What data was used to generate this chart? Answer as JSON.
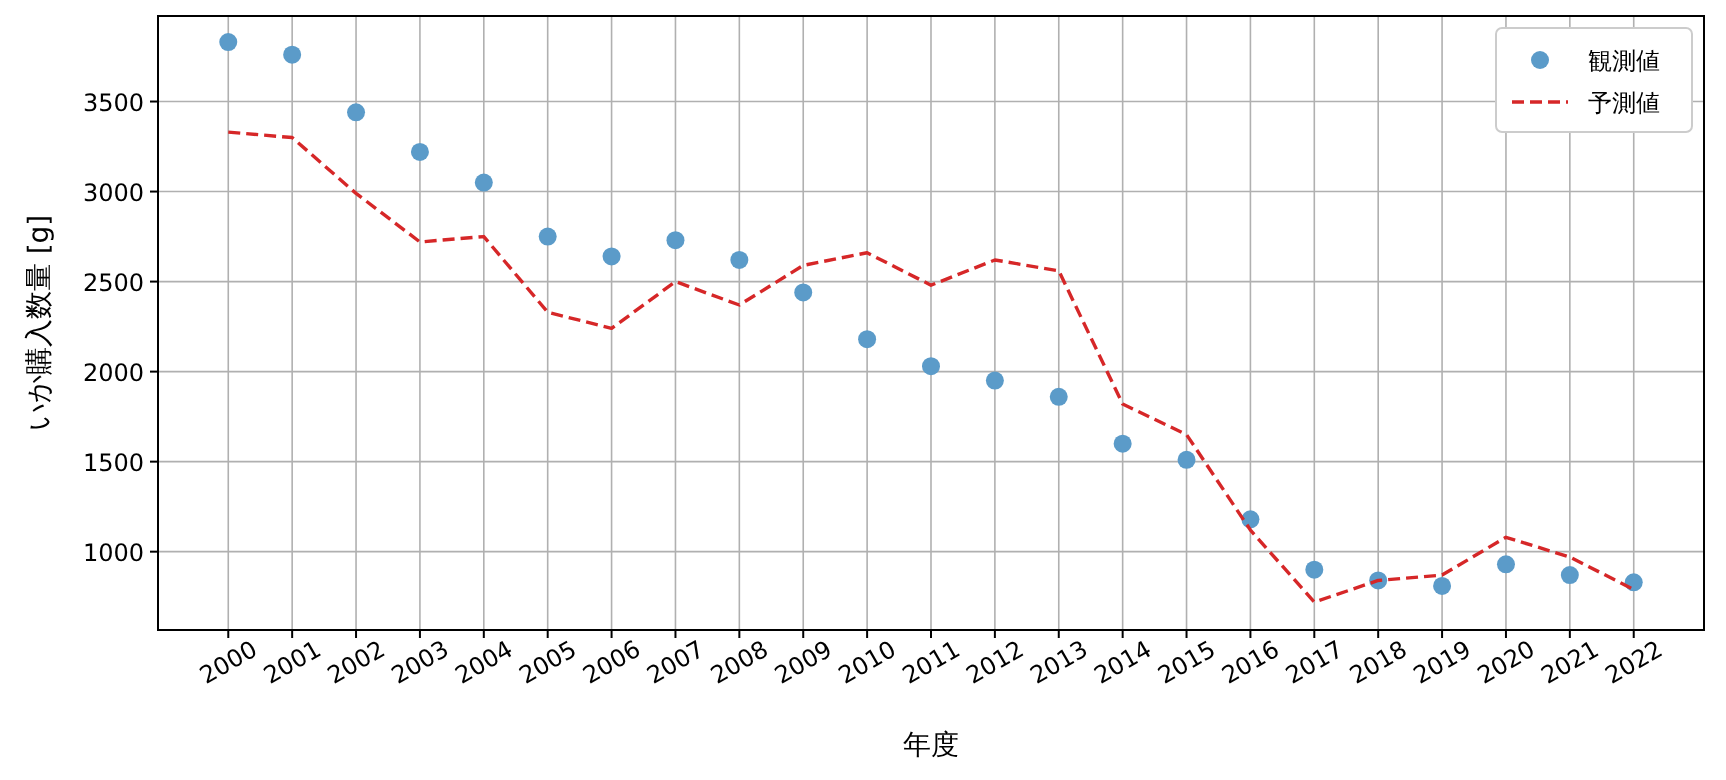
{
  "chart_data": {
    "type": "scatter",
    "xlabel": "年度",
    "ylabel": "いか購入数量 [g]",
    "x": [
      2000,
      2001,
      2002,
      2003,
      2004,
      2005,
      2006,
      2007,
      2008,
      2009,
      2010,
      2011,
      2012,
      2013,
      2014,
      2015,
      2016,
      2017,
      2018,
      2019,
      2020,
      2021,
      2022
    ],
    "series": [
      {
        "name": "観測値",
        "marker": "circle",
        "color": "#5b9bc9",
        "values": [
          3830,
          3760,
          3440,
          3220,
          3050,
          2750,
          2640,
          2730,
          2620,
          2440,
          2180,
          2030,
          1950,
          1860,
          1600,
          1510,
          1180,
          900,
          840,
          810,
          930,
          870,
          830
        ]
      },
      {
        "name": "予測値",
        "type": "line",
        "line_style": "dashed",
        "color": "#d62728",
        "values": [
          3330,
          3300,
          2990,
          2720,
          2750,
          2330,
          2240,
          2500,
          2370,
          2590,
          2660,
          2480,
          2620,
          2560,
          1820,
          1650,
          1120,
          720,
          840,
          870,
          1080,
          970,
          790
        ]
      }
    ],
    "xlim": [
      1998.9,
      2023.1
    ],
    "ylim": [
      565,
      3975
    ],
    "xticks": [
      2000,
      2001,
      2002,
      2003,
      2004,
      2005,
      2006,
      2007,
      2008,
      2009,
      2010,
      2011,
      2012,
      2013,
      2014,
      2015,
      2016,
      2017,
      2018,
      2019,
      2020,
      2021,
      2022
    ],
    "yticks": [
      1000,
      1500,
      2000,
      2500,
      3000,
      3500
    ],
    "grid": true,
    "legend": "top right"
  }
}
